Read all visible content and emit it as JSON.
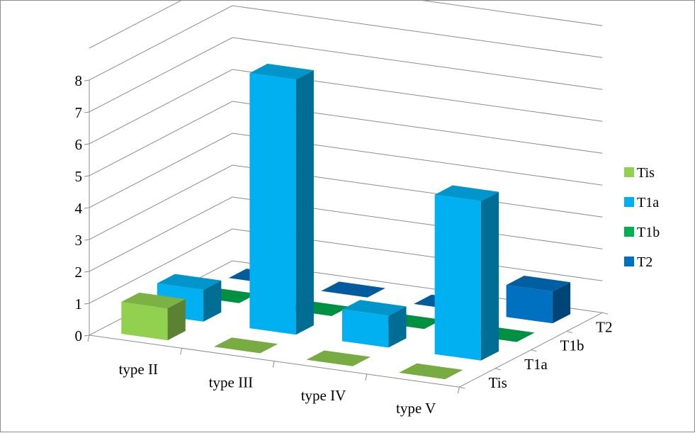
{
  "chart_data": {
    "type": "bar",
    "subtype": "3d-column",
    "categories": [
      "type II",
      "type III",
      "type IV",
      "type V"
    ],
    "series": [
      {
        "name": "Tis",
        "values": [
          1,
          0,
          0,
          0
        ],
        "color": "#92d050"
      },
      {
        "name": "T1a",
        "values": [
          1,
          8,
          1,
          5
        ],
        "color": "#00b0f0"
      },
      {
        "name": "T1b",
        "values": [
          0,
          0,
          0,
          0
        ],
        "color": "#00b050"
      },
      {
        "name": "T2",
        "values": [
          0,
          0,
          0,
          1
        ],
        "color": "#0070c0"
      }
    ],
    "depth_labels": [
      "Tis",
      "T1a",
      "T1b",
      "T2"
    ],
    "ylim": [
      0,
      8
    ],
    "yticks": [
      "0",
      "1",
      "2",
      "3",
      "4",
      "5",
      "6",
      "7",
      "8"
    ],
    "grid": true,
    "legend_position": "right",
    "title": "",
    "xlabel": "",
    "ylabel": ""
  }
}
